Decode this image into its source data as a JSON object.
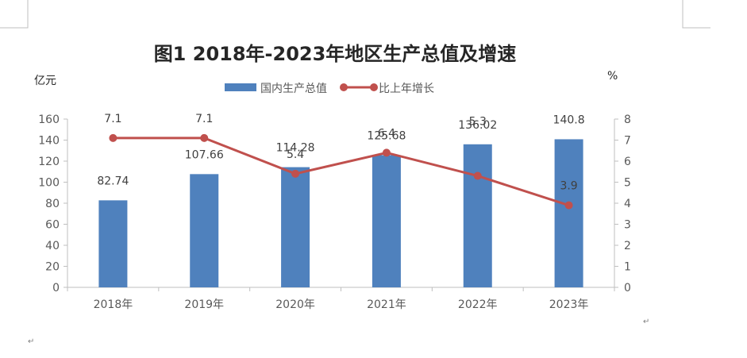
{
  "chart_data": {
    "type": "bar",
    "title": "图1 2018年-2023年地区生产总值及增速",
    "y_left_unit": "亿元",
    "y_right_unit": "%",
    "categories": [
      "2018年",
      "2019年",
      "2020年",
      "2021年",
      "2022年",
      "2023年"
    ],
    "series": [
      {
        "name": "国内生产总值",
        "type": "bar",
        "axis": "left",
        "color": "#4F81BD",
        "values": [
          82.74,
          107.66,
          114.28,
          125.68,
          136.02,
          140.8
        ],
        "labels": [
          "82.74",
          "107.66",
          "114.28",
          "125.68",
          "136.02",
          "140.8"
        ]
      },
      {
        "name": "比上年增长",
        "type": "line",
        "axis": "right",
        "color": "#C0504D",
        "values": [
          7.1,
          7.1,
          5.4,
          6.4,
          5.3,
          3.9
        ],
        "labels": [
          "7.1",
          "7.1",
          "5.4",
          "6.4",
          "5.3",
          "3.9"
        ]
      }
    ],
    "y_left": {
      "range": [
        0,
        160
      ],
      "ticks": [
        0,
        20,
        40,
        60,
        80,
        100,
        120,
        140,
        160
      ]
    },
    "y_right": {
      "range": [
        0,
        8
      ],
      "ticks": [
        0,
        1,
        2,
        3,
        4,
        5,
        6,
        7,
        8
      ]
    },
    "grid": false,
    "legend_position": "top"
  }
}
